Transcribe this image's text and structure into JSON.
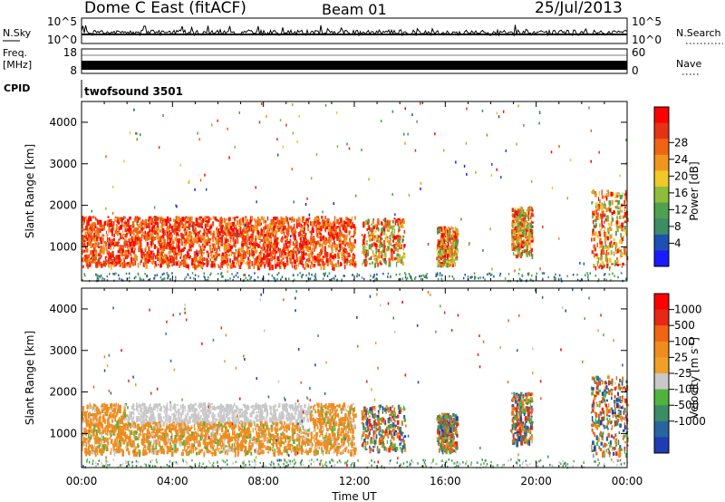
{
  "header": {
    "station": "Dome C East (fitACF)",
    "beam": "Beam 01",
    "date": "25/Jul/2013"
  },
  "status_panels": {
    "nsky": {
      "label": "N.Sky",
      "tick_top": "10^5",
      "tick_bottom": "10^0",
      "right_tick_top": "10^5",
      "right_tick_bottom": "10^0",
      "right_label": "N.Search"
    },
    "freq": {
      "label_line1": "Freq.",
      "label_line2": "[MHz]",
      "tick_top": "18",
      "tick_bottom": "8",
      "right_tick_top": "60",
      "right_tick_bottom": "0",
      "right_label": "Nave"
    },
    "cpid": {
      "label": "CPID",
      "program": "twofsound 3501"
    }
  },
  "chart_data": [
    {
      "type": "heatmap",
      "title": "",
      "ylabel": "Slant Range [km]",
      "xlabel": "",
      "ylim": [
        180,
        4500
      ],
      "xlim": [
        0,
        24
      ],
      "y_ticks": [
        "1000",
        "2000",
        "3000",
        "4000"
      ],
      "colorbar": {
        "label": "Power [dB]",
        "ticks": [
          "4",
          "8",
          "12",
          "16",
          "20",
          "24",
          "28"
        ],
        "colors": [
          "#1a1aff",
          "#1e50b4",
          "#3c8c64",
          "#50a050",
          "#8cbe3c",
          "#f0c828",
          "#f0961e",
          "#f06414",
          "#e63214",
          "#ff0000"
        ]
      },
      "echo_regions": [
        {
          "t0": 0.0,
          "t1": 12.0,
          "r0": 550,
          "r1": 1750,
          "intensity": "strong"
        },
        {
          "t0": 12.3,
          "t1": 14.2,
          "r0": 600,
          "r1": 1700,
          "intensity": "moderate"
        },
        {
          "t0": 15.6,
          "t1": 16.5,
          "r0": 600,
          "r1": 1500,
          "intensity": "moderate"
        },
        {
          "t0": 18.9,
          "t1": 19.8,
          "r0": 800,
          "r1": 2000,
          "intensity": "moderate"
        },
        {
          "t0": 22.4,
          "t1": 24.0,
          "r0": 500,
          "r1": 2400,
          "intensity": "moderate"
        }
      ]
    },
    {
      "type": "heatmap",
      "title": "",
      "ylabel": "Slant Range [km]",
      "xlabel": "Time UT",
      "ylim": [
        180,
        4500
      ],
      "xlim": [
        0,
        24
      ],
      "x_ticks": [
        "00:00",
        "04:00",
        "08:00",
        "12:00",
        "16:00",
        "20:00",
        "00:00"
      ],
      "y_ticks": [
        "1000",
        "2000",
        "3000",
        "4000"
      ],
      "colorbar": {
        "label": "Velocity [m s^-1]",
        "ticks": [
          "1000",
          "500",
          "100",
          "25",
          "-25",
          "-100",
          "-500",
          "-1000"
        ],
        "colors": [
          "#1e3cb4",
          "#2864a0",
          "#3c8c64",
          "#50b43c",
          "#c8c8c8",
          "#f0a028",
          "#f08c1e",
          "#f06414",
          "#e62814",
          "#ff0000"
        ]
      }
    }
  ]
}
